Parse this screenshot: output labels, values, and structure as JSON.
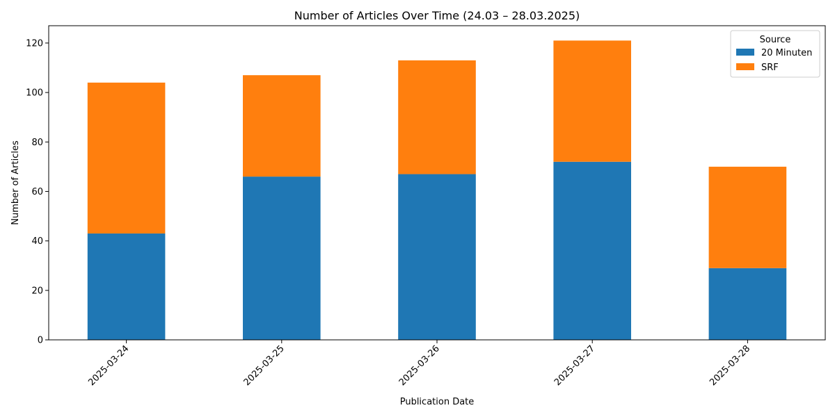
{
  "chart_data": {
    "type": "bar",
    "stacked": true,
    "title": "Number of Articles Over Time (24.03 – 28.03.2025)",
    "xlabel": "Publication Date",
    "ylabel": "Number of Articles",
    "categories": [
      "2025-03-24",
      "2025-03-25",
      "2025-03-26",
      "2025-03-27",
      "2025-03-28"
    ],
    "series": [
      {
        "name": "20 Minuten",
        "values": [
          43,
          66,
          67,
          72,
          29
        ],
        "color": "#1f77b4"
      },
      {
        "name": "SRF",
        "values": [
          61,
          41,
          46,
          49,
          41
        ],
        "color": "#ff7f0e"
      }
    ],
    "ylim": [
      0,
      127
    ],
    "yticks": [
      0,
      20,
      40,
      60,
      80,
      100,
      120
    ],
    "x_tick_rotation_deg": 45,
    "grid": false,
    "legend": {
      "title": "Source",
      "placement": "top-right"
    }
  }
}
